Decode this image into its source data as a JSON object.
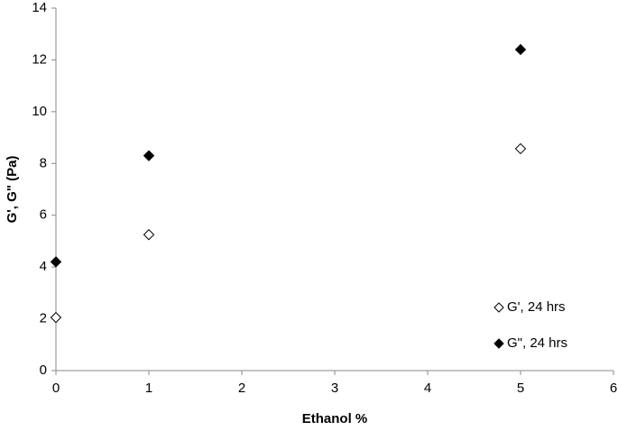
{
  "chart_data": {
    "type": "scatter",
    "xlabel": "Ethanol %",
    "ylabel": "G', G\" (Pa)",
    "series": [
      {
        "name": "G', 24 hrs",
        "color": "#000000",
        "filled": false,
        "x": [
          0,
          1,
          5
        ],
        "values": [
          2.05,
          5.25,
          8.57
        ]
      },
      {
        "name": "G\", 24 hrs",
        "color": "#000000",
        "filled": true,
        "x": [
          0,
          1,
          5
        ],
        "values": [
          4.2,
          8.3,
          12.4
        ]
      }
    ],
    "xlim": [
      0,
      6
    ],
    "xticks": [
      0,
      1,
      2,
      3,
      4,
      5,
      6
    ],
    "ylim": [
      0,
      14
    ],
    "yticks": [
      0,
      2,
      4,
      6,
      8,
      10,
      12,
      14
    ],
    "grid": false,
    "legend": "lower right"
  }
}
